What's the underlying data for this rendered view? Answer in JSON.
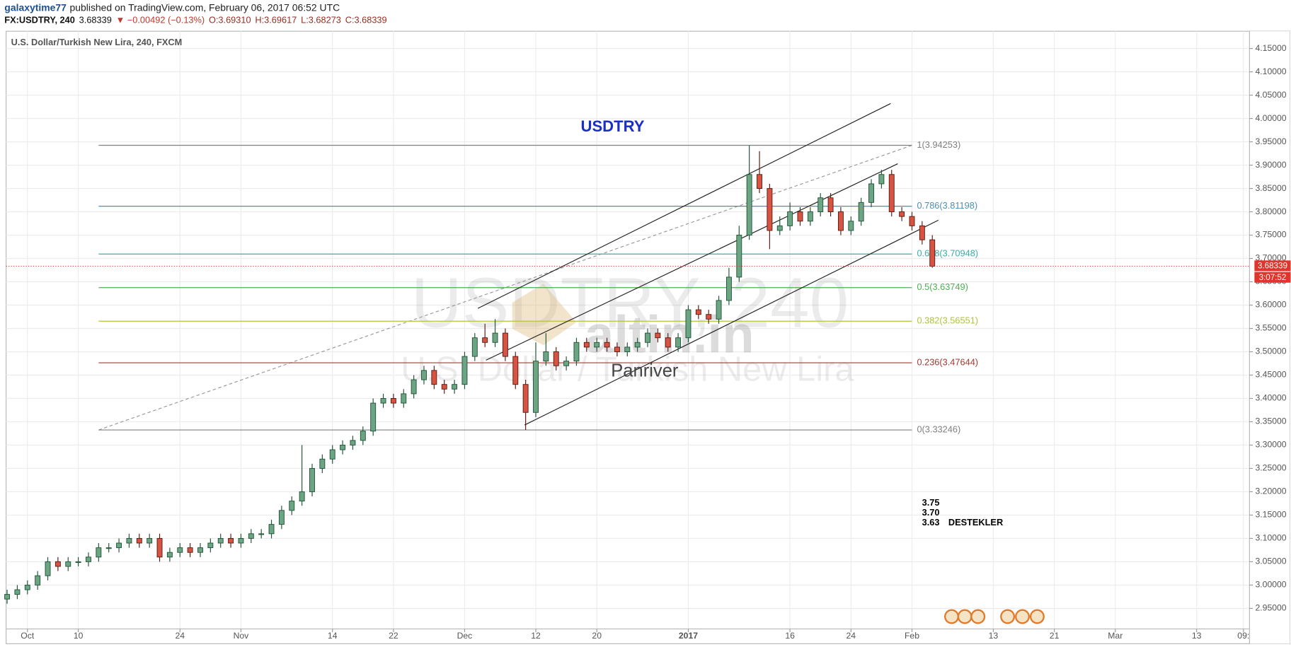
{
  "chart_data": {
    "type": "candlestick",
    "author": "galaxytime77",
    "published": "published on TradingView.com, February 06, 2017 06:52 UTC",
    "quote": [
      {
        "text": "FX:USDTRY, 240",
        "color": "#111111"
      },
      {
        "text": "3.68339",
        "color": "#111111"
      },
      {
        "text": "▼ −0.00492 (−0.13%)",
        "color": "#c0392b"
      },
      {
        "text": "O:3.69310",
        "color": "#9b2d20"
      },
      {
        "text": "H:3.69617",
        "color": "#9b2d20"
      },
      {
        "text": "L:3.68273",
        "color": "#9b2d20"
      },
      {
        "text": "C:3.68339",
        "color": "#9b2d20"
      }
    ],
    "title": "U.S. Dollar/Turkish New Lira, 240, FXCM",
    "headline": "USDTRY",
    "watermark": [
      "USDTRY, 240",
      "U.S. Dollar / Turkish New Lira",
      "altin.in"
    ],
    "signature": "Panriver",
    "supports": [
      "3.75",
      "3.70",
      "3.63"
    ],
    "supports_label": "DESTEKLER",
    "up_color": "#6ba583",
    "down_color": "#d75442",
    "up_edge": "#225437",
    "down_edge": "#5b1a13",
    "x": [
      -2,
      -1,
      0,
      1,
      2,
      3,
      4,
      5,
      6,
      7,
      8,
      9,
      10,
      11,
      12,
      13,
      14,
      15,
      16,
      17,
      18,
      19,
      20,
      21,
      22,
      23,
      24,
      25,
      26,
      27,
      28,
      29,
      30,
      31,
      32,
      33,
      34,
      35,
      36,
      37,
      38,
      39,
      40,
      41,
      42,
      43,
      44,
      45,
      46,
      47,
      48,
      49,
      50,
      51,
      52,
      53,
      54,
      55,
      56,
      57,
      58,
      59,
      60,
      61,
      62,
      63,
      64,
      65,
      66,
      67,
      68,
      69,
      70,
      71,
      72,
      73,
      74,
      75,
      76,
      77,
      78,
      79,
      80,
      81,
      82,
      83,
      84,
      85,
      86,
      87,
      88,
      89
    ],
    "open": [
      2.97,
      2.98,
      2.99,
      3.0,
      3.02,
      3.05,
      3.04,
      3.05,
      3.05,
      3.06,
      3.08,
      3.08,
      3.09,
      3.1,
      3.09,
      3.1,
      3.06,
      3.07,
      3.08,
      3.07,
      3.08,
      3.09,
      3.1,
      3.09,
      3.1,
      3.11,
      3.11,
      3.13,
      3.16,
      3.18,
      3.2,
      3.25,
      3.27,
      3.29,
      3.3,
      3.31,
      3.33,
      3.39,
      3.4,
      3.39,
      3.41,
      3.44,
      3.46,
      3.43,
      3.42,
      3.43,
      3.49,
      3.53,
      3.52,
      3.54,
      3.49,
      3.43,
      3.37,
      3.48,
      3.5,
      3.47,
      3.48,
      3.52,
      3.51,
      3.52,
      3.51,
      3.5,
      3.51,
      3.52,
      3.54,
      3.53,
      3.51,
      3.53,
      3.59,
      3.58,
      3.57,
      3.61,
      3.66,
      3.75,
      3.88,
      3.85,
      3.76,
      3.77,
      3.8,
      3.78,
      3.8,
      3.83,
      3.8,
      3.76,
      3.78,
      3.82,
      3.86,
      3.88,
      3.8,
      3.79,
      3.77,
      3.74
    ],
    "high": [
      2.99,
      3.0,
      3.01,
      3.03,
      3.06,
      3.06,
      3.06,
      3.06,
      3.07,
      3.09,
      3.09,
      3.1,
      3.11,
      3.11,
      3.11,
      3.11,
      3.08,
      3.09,
      3.09,
      3.09,
      3.1,
      3.11,
      3.11,
      3.11,
      3.12,
      3.12,
      3.14,
      3.17,
      3.19,
      3.3,
      3.26,
      3.28,
      3.3,
      3.31,
      3.32,
      3.34,
      3.4,
      3.41,
      3.41,
      3.42,
      3.45,
      3.47,
      3.47,
      3.44,
      3.44,
      3.5,
      3.54,
      3.56,
      3.57,
      3.55,
      3.5,
      3.44,
      3.52,
      3.54,
      3.51,
      3.49,
      3.53,
      3.53,
      3.53,
      3.53,
      3.52,
      3.52,
      3.53,
      3.55,
      3.55,
      3.54,
      3.54,
      3.6,
      3.6,
      3.59,
      3.62,
      3.68,
      3.77,
      3.94253,
      3.93,
      3.86,
      3.79,
      3.82,
      3.81,
      3.81,
      3.84,
      3.84,
      3.81,
      3.79,
      3.83,
      3.87,
      3.89,
      3.89,
      3.81,
      3.8,
      3.78,
      3.75
    ],
    "low": [
      2.96,
      2.97,
      2.98,
      2.99,
      3.01,
      3.03,
      3.03,
      3.04,
      3.04,
      3.05,
      3.07,
      3.07,
      3.08,
      3.08,
      3.08,
      3.05,
      3.05,
      3.06,
      3.06,
      3.06,
      3.07,
      3.08,
      3.08,
      3.08,
      3.09,
      3.1,
      3.1,
      3.12,
      3.15,
      3.17,
      3.19,
      3.24,
      3.26,
      3.28,
      3.29,
      3.3,
      3.32,
      3.38,
      3.38,
      3.38,
      3.4,
      3.43,
      3.42,
      3.41,
      3.41,
      3.42,
      3.48,
      3.51,
      3.51,
      3.48,
      3.42,
      3.33246,
      3.36,
      3.47,
      3.46,
      3.46,
      3.47,
      3.5,
      3.5,
      3.5,
      3.49,
      3.49,
      3.5,
      3.51,
      3.52,
      3.5,
      3.5,
      3.52,
      3.57,
      3.56,
      3.56,
      3.6,
      3.65,
      3.74,
      3.84,
      3.72,
      3.75,
      3.76,
      3.77,
      3.77,
      3.79,
      3.79,
      3.75,
      3.75,
      3.77,
      3.81,
      3.85,
      3.79,
      3.78,
      3.76,
      3.73,
      3.68
    ],
    "close": [
      2.98,
      2.99,
      3.0,
      3.02,
      3.05,
      3.04,
      3.05,
      3.05,
      3.06,
      3.08,
      3.08,
      3.09,
      3.1,
      3.09,
      3.1,
      3.06,
      3.07,
      3.08,
      3.07,
      3.08,
      3.09,
      3.1,
      3.09,
      3.1,
      3.11,
      3.11,
      3.13,
      3.16,
      3.18,
      3.2,
      3.25,
      3.27,
      3.29,
      3.3,
      3.31,
      3.33,
      3.39,
      3.4,
      3.39,
      3.41,
      3.44,
      3.46,
      3.43,
      3.42,
      3.43,
      3.49,
      3.53,
      3.52,
      3.54,
      3.49,
      3.43,
      3.37,
      3.48,
      3.5,
      3.47,
      3.48,
      3.52,
      3.51,
      3.52,
      3.51,
      3.5,
      3.51,
      3.52,
      3.54,
      3.53,
      3.51,
      3.53,
      3.59,
      3.58,
      3.57,
      3.61,
      3.66,
      3.75,
      3.88,
      3.85,
      3.76,
      3.77,
      3.8,
      3.78,
      3.8,
      3.83,
      3.8,
      3.76,
      3.78,
      3.82,
      3.86,
      3.88,
      3.8,
      3.79,
      3.77,
      3.74,
      3.68339
    ],
    "last_price": 3.68339,
    "last_price_color": "#e0342c",
    "countdown": "3:07:52",
    "fibonacci": {
      "x": [
        7,
        87
      ],
      "levels": [
        {
          "value": 3.94253,
          "label": "1(3.94253)",
          "color": "#808080"
        },
        {
          "value": 3.81198,
          "label": "0.786(3.81198)",
          "color": "#4c8fb3"
        },
        {
          "value": 3.70948,
          "label": "0.618(3.70948)",
          "color": "#3aada4"
        },
        {
          "value": 3.63749,
          "label": "0.5(3.63749)",
          "color": "#4caf50"
        },
        {
          "value": 3.56551,
          "label": "0.382(3.56551)",
          "color": "#b3c23a"
        },
        {
          "value": 3.47644,
          "label": "0.236(3.47644)",
          "color": "#a33a33"
        },
        {
          "value": 3.33246,
          "label": "0(3.33246)",
          "color": "#808080"
        }
      ]
    },
    "trend_lines": [
      {
        "x": [
          44.3,
          84.9
        ],
        "y": [
          3.593,
          4.032
        ]
      },
      {
        "x": [
          45.1,
          85.6
        ],
        "y": [
          3.482,
          3.903
        ]
      },
      {
        "x": [
          48.9,
          89.6
        ],
        "y": [
          3.343,
          3.782
        ]
      }
    ],
    "xlim": [
      -2.1,
      120.2
    ],
    "xticks": [
      {
        "value": 0,
        "label": "Oct"
      },
      {
        "value": 5,
        "label": "10"
      },
      {
        "value": 15,
        "label": "24"
      },
      {
        "value": 21,
        "label": "Nov"
      },
      {
        "value": 30,
        "label": "14"
      },
      {
        "value": 36,
        "label": "22"
      },
      {
        "value": 43,
        "label": "Dec"
      },
      {
        "value": 50,
        "label": "12"
      },
      {
        "value": 56,
        "label": "20"
      },
      {
        "value": 65,
        "label": "2017"
      },
      {
        "value": 75,
        "label": "16"
      },
      {
        "value": 81,
        "label": "24"
      },
      {
        "value": 87,
        "label": "Feb"
      },
      {
        "value": 95,
        "label": "13"
      },
      {
        "value": 101,
        "label": "21"
      },
      {
        "value": 107,
        "label": "Mar"
      },
      {
        "value": 115,
        "label": "13"
      },
      {
        "value": 119.6,
        "label": "09:"
      }
    ],
    "ylim": [
      2.906,
      4.187
    ],
    "yticks": [
      {
        "value": 4.15,
        "label": "4.15000"
      },
      {
        "value": 4.1,
        "label": "4.10000"
      },
      {
        "value": 4.05,
        "label": "4.05000"
      },
      {
        "value": 4.0,
        "label": "4.00000"
      },
      {
        "value": 3.95,
        "label": "3.95000"
      },
      {
        "value": 3.9,
        "label": "3.90000"
      },
      {
        "value": 3.85,
        "label": "3.85000"
      },
      {
        "value": 3.8,
        "label": "3.80000"
      },
      {
        "value": 3.75,
        "label": "3.75000"
      },
      {
        "value": 3.7,
        "label": "3.70000"
      },
      {
        "value": 3.65,
        "label": "3.65000"
      },
      {
        "value": 3.6,
        "label": "3.60000"
      },
      {
        "value": 3.55,
        "label": "3.55000"
      },
      {
        "value": 3.5,
        "label": "3.50000"
      },
      {
        "value": 3.45,
        "label": "3.45000"
      },
      {
        "value": 3.4,
        "label": "3.40000"
      },
      {
        "value": 3.35,
        "label": "3.35000"
      },
      {
        "value": 3.3,
        "label": "3.30000"
      },
      {
        "value": 3.25,
        "label": "3.25000"
      },
      {
        "value": 3.2,
        "label": "3.20000"
      },
      {
        "value": 3.15,
        "label": "3.15000"
      },
      {
        "value": 3.1,
        "label": "3.10000"
      },
      {
        "value": 3.05,
        "label": "3.05000"
      },
      {
        "value": 3.0,
        "label": "3.00000"
      },
      {
        "value": 2.95,
        "label": "2.95000"
      }
    ],
    "grid": true
  }
}
